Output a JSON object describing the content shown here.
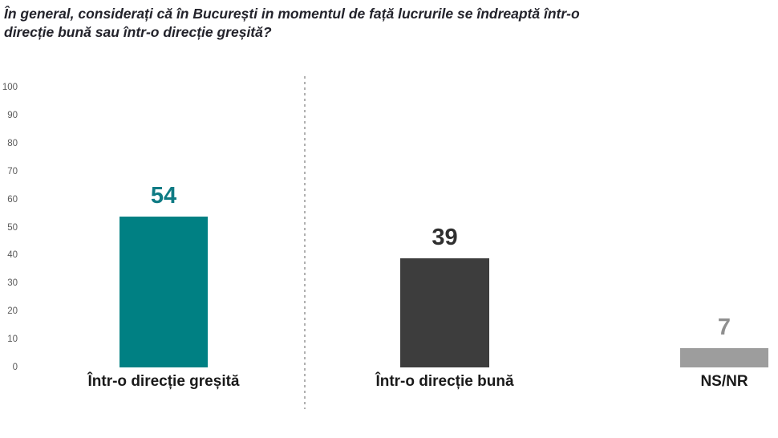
{
  "title": {
    "line1": "În general, considerați că în București in momentul de față lucrurile se îndreaptă într-o",
    "line2": "direcție bună sau într-o direcție greșită?"
  },
  "chart_data": {
    "type": "bar",
    "title": "În general, considerați că în București in momentul de față lucrurile se îndreaptă într-o direcție bună sau într-o direcție greșită?",
    "categories": [
      "Într-o direcție greșită",
      "Într-o direcție bună",
      "NS/NR"
    ],
    "values": [
      54,
      39,
      7
    ],
    "bar_colors": [
      "#008083",
      "#3D3D3D",
      "#9D9D9D"
    ],
    "value_label_colors": [
      "#0F7B84",
      "#303030",
      "#8F8F8F"
    ],
    "ylim": [
      0,
      100
    ],
    "yticks": [
      100,
      90,
      80,
      70,
      60,
      50,
      40,
      30,
      20,
      10,
      0
    ],
    "ytick_color": "#595959",
    "grid": false,
    "legend": false,
    "background": "#FFFFFF",
    "separator_note": "dotted vertical divider between first bar and the other two"
  }
}
